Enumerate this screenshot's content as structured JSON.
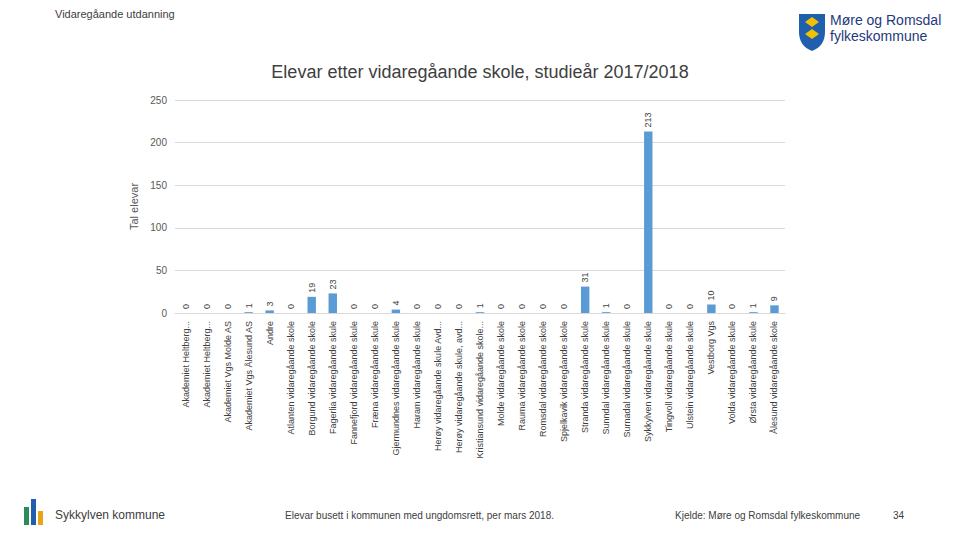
{
  "header": {
    "section": "Vidaregåande utdanning",
    "logo": [
      "Møre og Romsdal",
      "fylkeskommune"
    ]
  },
  "chart_data": {
    "type": "bar",
    "title": "Elevar etter vidaregåande skole, studieår 2017/2018",
    "y_label": "Tal elevar",
    "categories": [
      "Akademiet Heltberg...",
      "Akademiet Heltberg...",
      "Akademiet Vgs Molde AS",
      "Akademiet Vgs Ålesund AS",
      "Andre",
      "Atlanten vidaregåande skole",
      "Borgund vidaregåande skole",
      "Fagerlia vidaregåande skule",
      "Fannefjord vidaregåande skule",
      "Fræna vidaregåande skule",
      "Gjermundnes vidaregåande skule",
      "Haram vidaregåande skule",
      "Herøy vidaregåande skule Avd...",
      "Herøy vidaregåande skule, avd...",
      "Kristiansund vidaregåande skole...",
      "Molde vidaregåande skole",
      "Rauma vidaregåande skole",
      "Romsdal vidaregåande skole",
      "Spjelkavik vidaregåande skole",
      "Stranda vidaregåande skule",
      "Sunndal vidaregåande skule",
      "Surnadal vidaregåande skule",
      "Sykkylven vidaregåande skule",
      "Tingvoll vidaregåande skule",
      "Ulstein vidaregåande skule",
      "Vestborg Vgs",
      "Volda vidaregåande skule",
      "Ørsta vidaregåande skule",
      "Ålesund vidaregåande skole"
    ],
    "values": [
      0,
      0,
      0,
      1,
      3,
      0,
      19,
      23,
      0,
      0,
      4,
      0,
      0,
      0,
      1,
      0,
      0,
      0,
      0,
      31,
      1,
      0,
      213,
      0,
      0,
      10,
      0,
      1,
      9
    ],
    "color": "#5b9bd5",
    "ylim": [
      0,
      250
    ],
    "yticks": [
      0,
      50,
      100,
      150,
      200,
      250
    ],
    "grid": true,
    "data_labels": true
  },
  "footer": {
    "left": "Sykkylven kommune",
    "middle": "Elevar busett i kommunen med ungdomsrett, per mars 2018.",
    "right": "Kjelde: Møre og Romsdal fylkeskommune",
    "page": "34"
  }
}
